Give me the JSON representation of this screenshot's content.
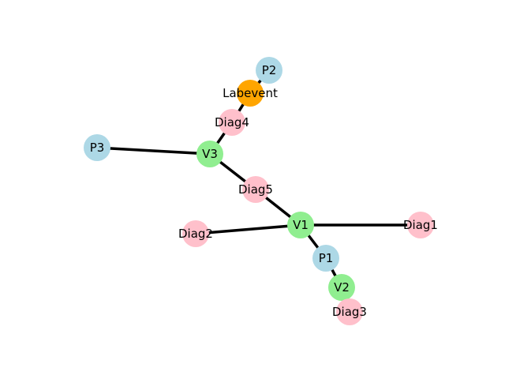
{
  "graph": {
    "node_colors": {
      "patient": "#add8e6",
      "visit": "#90ee90",
      "diagnosis": "#ffc0cb",
      "labevent": "#ffa500"
    },
    "nodes": [
      {
        "id": "P2",
        "label": "P2",
        "kind": "patient"
      },
      {
        "id": "Labevent",
        "label": "Labevent",
        "kind": "labevent"
      },
      {
        "id": "Diag4",
        "label": "Diag4",
        "kind": "diagnosis"
      },
      {
        "id": "P3",
        "label": "P3",
        "kind": "patient"
      },
      {
        "id": "V3",
        "label": "V3",
        "kind": "visit"
      },
      {
        "id": "Diag5",
        "label": "Diag5",
        "kind": "diagnosis"
      },
      {
        "id": "Diag2",
        "label": "Diag2",
        "kind": "diagnosis"
      },
      {
        "id": "V1",
        "label": "V1",
        "kind": "visit"
      },
      {
        "id": "Diag1",
        "label": "Diag1",
        "kind": "diagnosis"
      },
      {
        "id": "P1",
        "label": "P1",
        "kind": "patient"
      },
      {
        "id": "V2",
        "label": "V2",
        "kind": "visit"
      },
      {
        "id": "Diag3",
        "label": "Diag3",
        "kind": "diagnosis"
      }
    ],
    "edges": [
      {
        "source": "P2",
        "target": "Labevent"
      },
      {
        "source": "Labevent",
        "target": "Diag4"
      },
      {
        "source": "Diag4",
        "target": "V3"
      },
      {
        "source": "P3",
        "target": "V3"
      },
      {
        "source": "V3",
        "target": "Diag5"
      },
      {
        "source": "Diag5",
        "target": "V1"
      },
      {
        "source": "Diag2",
        "target": "V1"
      },
      {
        "source": "V1",
        "target": "Diag1"
      },
      {
        "source": "V1",
        "target": "P1"
      },
      {
        "source": "P1",
        "target": "V2"
      },
      {
        "source": "V2",
        "target": "Diag3"
      }
    ]
  }
}
